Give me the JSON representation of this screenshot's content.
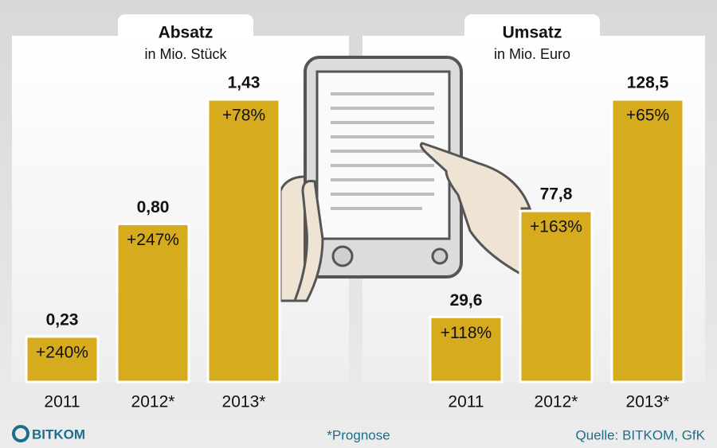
{
  "chart_data": [
    {
      "type": "bar",
      "title": "Absatz",
      "subtitle": "in Mio. Stück",
      "categories": [
        "2011",
        "2012*",
        "2013*"
      ],
      "values": [
        0.23,
        0.8,
        1.43
      ],
      "value_labels": [
        "0,23",
        "0,80",
        "1,43"
      ],
      "bar_annotations": [
        "+240%",
        "+247%",
        "+78%"
      ],
      "color": "#d6ab1e"
    },
    {
      "type": "bar",
      "title": "Umsatz",
      "subtitle": "in Mio. Euro",
      "categories": [
        "2011",
        "2012*",
        "2013*"
      ],
      "values": [
        29.6,
        77.8,
        128.5
      ],
      "value_labels": [
        "29,6",
        "77,8",
        "128,5"
      ],
      "bar_annotations": [
        "+118%",
        "+163%",
        "+65%"
      ],
      "color": "#d6ab1e"
    }
  ],
  "footer": {
    "logo": "BITKOM",
    "note": "*Prognose",
    "source": "Quelle: BITKOM, GfK"
  }
}
